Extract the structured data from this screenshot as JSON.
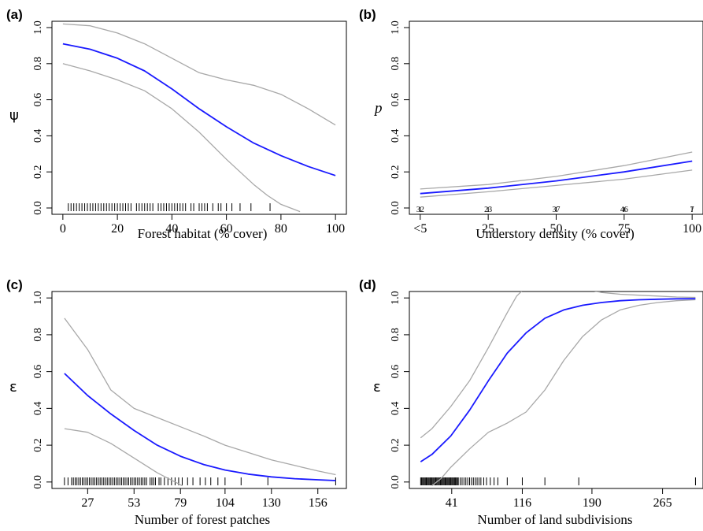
{
  "colors": {
    "fit": "#1a1aff",
    "ci": "#a8a8a8",
    "axis": "#000000",
    "rug": "#000000"
  },
  "chart_data": [
    {
      "panel": "(a)",
      "type": "line",
      "ylabel": "ψ",
      "ylabel_style": "symbol",
      "xlabel": "Forest habitat (% cover)",
      "xlim": [
        -4,
        104
      ],
      "ylim": [
        -0.035,
        1.035
      ],
      "x_ticks": [
        0,
        20,
        40,
        60,
        80,
        100
      ],
      "x_tick_labels": [
        "0",
        "20",
        "40",
        "60",
        "80",
        "100"
      ],
      "y_ticks": [
        0,
        0.2,
        0.4,
        0.6,
        0.8,
        1.0
      ],
      "y_tick_labels": [
        "0.0",
        "0.2",
        "0.4",
        "0.6",
        "0.8",
        "1.0"
      ],
      "series": [
        {
          "role": "fit",
          "x": [
            0,
            10,
            20,
            30,
            40,
            50,
            60,
            70,
            80,
            90,
            100
          ],
          "y": [
            0.91,
            0.88,
            0.83,
            0.76,
            0.66,
            0.55,
            0.45,
            0.36,
            0.29,
            0.23,
            0.18
          ]
        },
        {
          "role": "upper",
          "x": [
            0,
            10,
            20,
            30,
            40,
            50,
            60,
            70,
            80,
            90,
            100
          ],
          "y": [
            1.02,
            1.01,
            0.97,
            0.91,
            0.83,
            0.75,
            0.71,
            0.68,
            0.63,
            0.55,
            0.46
          ]
        },
        {
          "role": "lower",
          "x": [
            0,
            10,
            20,
            30,
            40,
            50,
            60,
            70,
            75,
            80,
            87
          ],
          "y": [
            0.8,
            0.76,
            0.71,
            0.65,
            0.55,
            0.42,
            0.27,
            0.13,
            0.07,
            0.02,
            -0.02
          ]
        }
      ],
      "rug": [
        2,
        3,
        4,
        5,
        6,
        7,
        8,
        9,
        10,
        11,
        12,
        13,
        14,
        15,
        16,
        17,
        18,
        19,
        20,
        21,
        22,
        23,
        24,
        25,
        27,
        28,
        29,
        30,
        31,
        32,
        33,
        35,
        36,
        37,
        38,
        39,
        40,
        41,
        42,
        43,
        44,
        45,
        47,
        48,
        50,
        51,
        52,
        53,
        55,
        57,
        58,
        60,
        62,
        65,
        69,
        76
      ]
    },
    {
      "panel": "(b)",
      "type": "line",
      "ylabel": "p",
      "ylabel_style": "italic",
      "xlabel": "Understory density (% cover)",
      "xlim": [
        -4,
        104
      ],
      "ylim": [
        -0.035,
        1.035
      ],
      "x_ticks": [
        0,
        25,
        50,
        75,
        100
      ],
      "x_tick_labels": [
        "<5",
        "25",
        "50",
        "75",
        "100"
      ],
      "y_ticks": [
        0,
        0.2,
        0.4,
        0.6,
        0.8,
        1.0
      ],
      "y_tick_labels": [
        "0.0",
        "0.2",
        "0.4",
        "0.6",
        "0.8",
        "1.0"
      ],
      "series": [
        {
          "role": "fit",
          "x": [
            0,
            25,
            50,
            75,
            100
          ],
          "y": [
            0.08,
            0.11,
            0.15,
            0.2,
            0.26
          ]
        },
        {
          "role": "upper",
          "x": [
            0,
            25,
            50,
            75,
            100
          ],
          "y": [
            0.105,
            0.13,
            0.175,
            0.235,
            0.31
          ]
        },
        {
          "role": "lower",
          "x": [
            0,
            25,
            50,
            75,
            100
          ],
          "y": [
            0.06,
            0.09,
            0.125,
            0.16,
            0.21
          ]
        }
      ],
      "counts": [
        {
          "x": 0,
          "label": "32"
        },
        {
          "x": 25,
          "label": "23"
        },
        {
          "x": 50,
          "label": "37"
        },
        {
          "x": 75,
          "label": "46"
        },
        {
          "x": 100,
          "label": "7"
        }
      ]
    },
    {
      "panel": "(c)",
      "type": "line",
      "ylabel": "ε",
      "ylabel_style": "symbol",
      "xlabel": "Number of forest patches",
      "xlim": [
        7,
        172
      ],
      "ylim": [
        -0.035,
        1.035
      ],
      "x_ticks": [
        27,
        53,
        79,
        104,
        130,
        156
      ],
      "x_tick_labels": [
        "27",
        "53",
        "79",
        "104",
        "130",
        "156"
      ],
      "y_ticks": [
        0,
        0.2,
        0.4,
        0.6,
        0.8,
        1.0
      ],
      "y_tick_labels": [
        "0.0",
        "0.2",
        "0.4",
        "0.6",
        "0.8",
        "1.0"
      ],
      "series": [
        {
          "role": "fit",
          "x": [
            14,
            27,
            40,
            53,
            66,
            79,
            92,
            104,
            117,
            130,
            143,
            156,
            166
          ],
          "y": [
            0.59,
            0.47,
            0.37,
            0.28,
            0.2,
            0.14,
            0.095,
            0.065,
            0.043,
            0.028,
            0.018,
            0.012,
            0.008
          ]
        },
        {
          "role": "upper",
          "x": [
            14,
            27,
            40,
            53,
            66,
            79,
            92,
            104,
            117,
            130,
            143,
            156,
            166
          ],
          "y": [
            0.89,
            0.72,
            0.5,
            0.4,
            0.35,
            0.3,
            0.25,
            0.2,
            0.16,
            0.12,
            0.09,
            0.06,
            0.04
          ]
        },
        {
          "role": "lower",
          "x": [
            14,
            27,
            40,
            53,
            66,
            76,
            80
          ],
          "y": [
            0.29,
            0.27,
            0.21,
            0.13,
            0.05,
            0.0,
            -0.02
          ]
        }
      ],
      "rug": [
        14,
        16,
        18,
        19,
        20,
        21,
        22,
        23,
        24,
        25,
        26,
        27,
        28,
        29,
        30,
        31,
        32,
        33,
        34,
        35,
        36,
        37,
        38,
        39,
        40,
        41,
        42,
        43,
        44,
        45,
        46,
        47,
        48,
        49,
        50,
        51,
        52,
        53,
        54,
        55,
        56,
        57,
        58,
        59,
        60,
        62,
        63,
        64,
        65,
        67,
        68,
        70,
        72,
        74,
        76,
        78,
        80,
        83,
        86,
        90,
        93,
        96,
        100,
        104,
        113,
        128,
        166
      ]
    },
    {
      "panel": "(d)",
      "type": "line",
      "ylabel": "ε",
      "ylabel_style": "symbol",
      "xlabel": "Number of land subdivisions",
      "xlim": [
        -4,
        308
      ],
      "ylim": [
        -0.035,
        1.035
      ],
      "x_ticks": [
        41,
        116,
        190,
        265
      ],
      "x_tick_labels": [
        "41",
        "116",
        "190",
        "265"
      ],
      "y_ticks": [
        0,
        0.2,
        0.4,
        0.6,
        0.8,
        1.0
      ],
      "y_tick_labels": [
        "0.0",
        "0.2",
        "0.4",
        "0.6",
        "0.8",
        "1.0"
      ],
      "series": [
        {
          "role": "fit",
          "x": [
            8,
            20,
            40,
            60,
            80,
            100,
            120,
            140,
            160,
            180,
            200,
            220,
            240,
            260,
            280,
            300
          ],
          "y": [
            0.11,
            0.15,
            0.25,
            0.39,
            0.55,
            0.7,
            0.81,
            0.89,
            0.935,
            0.96,
            0.975,
            0.985,
            0.99,
            0.993,
            0.995,
            0.996
          ]
        },
        {
          "role": "upper",
          "x": [
            8,
            20,
            40,
            60,
            80,
            100,
            110,
            116,
            120,
            140,
            160,
            180,
            200,
            220,
            240,
            260,
            280,
            300
          ],
          "y": [
            0.24,
            0.29,
            0.41,
            0.55,
            0.73,
            0.92,
            1.01,
            1.04,
            1.06,
            1.08,
            1.07,
            1.05,
            1.03,
            1.02,
            1.015,
            1.01,
            1.005,
            1.003
          ]
        },
        {
          "role": "lower",
          "x": [
            20,
            30,
            40,
            60,
            80,
            100,
            120,
            140,
            160,
            180,
            200,
            220,
            240,
            260,
            280,
            300
          ],
          "y": [
            -0.02,
            0.02,
            0.08,
            0.18,
            0.27,
            0.32,
            0.38,
            0.5,
            0.66,
            0.79,
            0.88,
            0.935,
            0.96,
            0.975,
            0.985,
            0.99
          ]
        }
      ],
      "rug": [
        8,
        9,
        10,
        11,
        12,
        13,
        14,
        15,
        16,
        17,
        18,
        19,
        20,
        21,
        22,
        23,
        24,
        25,
        26,
        27,
        28,
        29,
        30,
        31,
        32,
        33,
        34,
        35,
        36,
        37,
        38,
        39,
        40,
        41,
        42,
        43,
        44,
        45,
        46,
        47,
        48,
        50,
        52,
        54,
        56,
        58,
        60,
        62,
        64,
        66,
        68,
        70,
        72,
        75,
        78,
        82,
        86,
        90,
        100,
        116,
        140,
        176,
        300
      ]
    }
  ]
}
